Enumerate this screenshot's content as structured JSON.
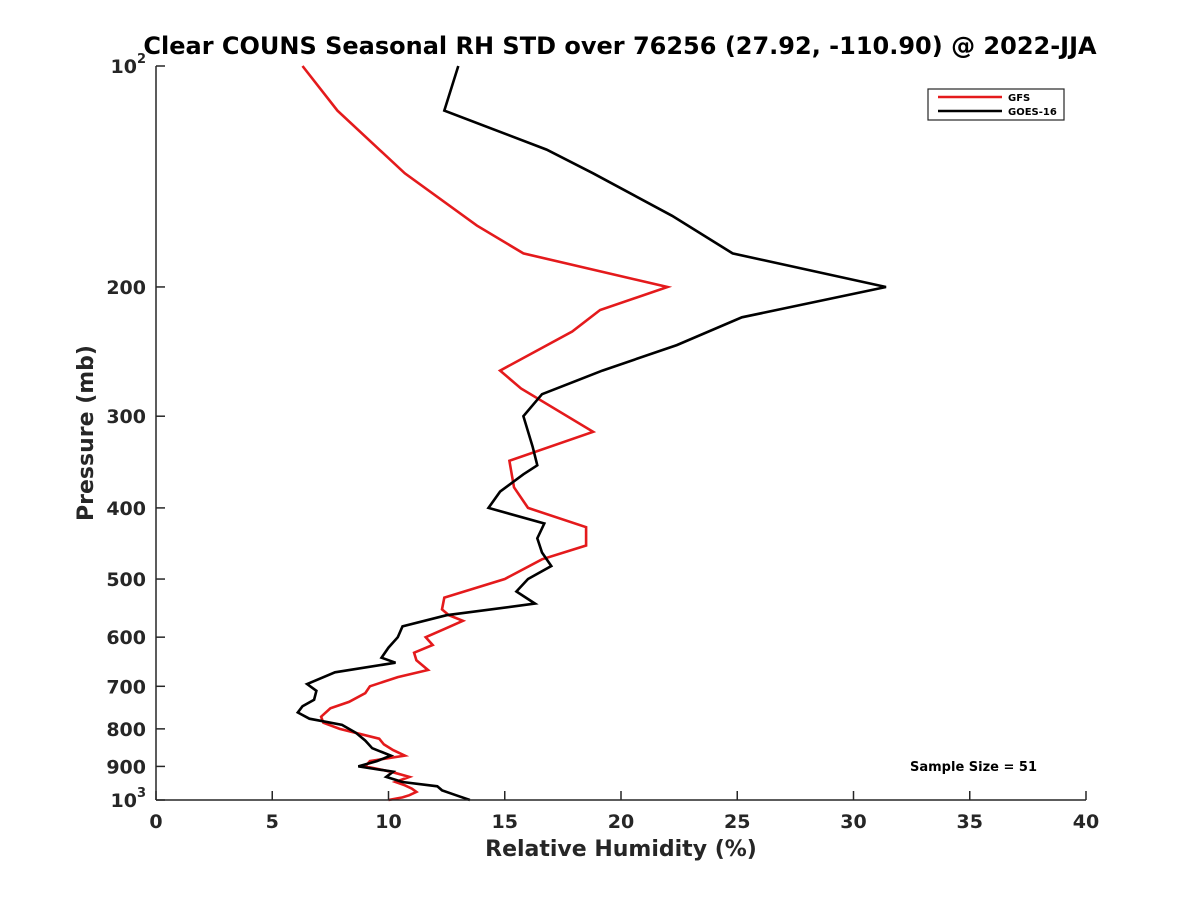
{
  "chart_data": {
    "type": "line",
    "title": "Clear COUNS Seasonal RH STD over 76256 (27.92, -110.90) @ 2022-JJA",
    "xlabel": "Relative Humidity (%)",
    "ylabel": "Pressure (mb)",
    "xlim": [
      0,
      40
    ],
    "ylim": [
      100,
      1000
    ],
    "yscale": "log",
    "y_reversed": true,
    "grid": false,
    "legend_position": "top-right",
    "x_ticks": [
      {
        "value": 0,
        "label": "0"
      },
      {
        "value": 5,
        "label": "5"
      },
      {
        "value": 10,
        "label": "10"
      },
      {
        "value": 15,
        "label": "15"
      },
      {
        "value": 20,
        "label": "20"
      },
      {
        "value": 25,
        "label": "25"
      },
      {
        "value": 30,
        "label": "30"
      },
      {
        "value": 35,
        "label": "35"
      },
      {
        "value": 40,
        "label": "40"
      }
    ],
    "y_ticks": [
      {
        "value": 100,
        "base": "10",
        "exp": "2"
      },
      {
        "value": 200,
        "label": "200"
      },
      {
        "value": 300,
        "label": "300"
      },
      {
        "value": 400,
        "label": "400"
      },
      {
        "value": 500,
        "label": "500"
      },
      {
        "value": 600,
        "label": "600"
      },
      {
        "value": 700,
        "label": "700"
      },
      {
        "value": 800,
        "label": "800"
      },
      {
        "value": 900,
        "label": "900"
      },
      {
        "value": 1000,
        "base": "10",
        "exp": "3"
      }
    ],
    "annotation": "Sample Size = 51",
    "series": [
      {
        "name": "GFS",
        "color": "#e41a1c",
        "x": [
          6.3,
          7.8,
          10.7,
          13.8,
          15.8,
          22.0,
          19.1,
          17.9,
          14.8,
          15.7,
          18.8,
          15.2,
          15.4,
          16.0,
          18.5,
          18.5,
          16.6,
          15.0,
          12.4,
          12.3,
          12.6,
          13.2,
          12.4,
          11.6,
          11.9,
          11.1,
          11.2,
          11.7,
          10.4,
          9.2,
          9.0,
          8.3,
          7.5,
          7.1,
          7.2,
          7.9,
          9.6,
          9.8,
          10.2,
          10.7,
          9.2,
          9.0,
          10.1,
          10.9,
          10.3,
          10.7,
          11.0,
          11.2,
          10.9,
          10.6,
          10.0
        ],
        "y": [
          100,
          115,
          140,
          165,
          180,
          200,
          215,
          230,
          260,
          275,
          315,
          345,
          375,
          400,
          425,
          450,
          470,
          500,
          530,
          550,
          560,
          570,
          585,
          600,
          615,
          630,
          645,
          665,
          680,
          700,
          715,
          735,
          750,
          770,
          785,
          800,
          825,
          840,
          855,
          870,
          885,
          900,
          915,
          930,
          945,
          955,
          965,
          975,
          985,
          992,
          1000
        ]
      },
      {
        "name": "GOES-16",
        "color": "#000000",
        "x": [
          13.0,
          12.4,
          16.8,
          18.8,
          22.2,
          24.8,
          31.4,
          25.2,
          22.4,
          19.2,
          16.6,
          15.8,
          16.2,
          16.4,
          15.8,
          14.8,
          14.3,
          16.7,
          16.4,
          16.6,
          17.0,
          16.0,
          15.5,
          16.3,
          12.5,
          10.6,
          10.4,
          10.0,
          9.7,
          10.3,
          7.7,
          6.5,
          6.9,
          6.8,
          6.3,
          6.1,
          6.6,
          8.0,
          8.6,
          9.0,
          9.3,
          10.1,
          9.5,
          8.7,
          10.2,
          9.9,
          10.6,
          12.1,
          12.3,
          12.9,
          13.5
        ],
        "y": [
          100,
          115,
          130,
          140,
          160,
          180,
          200,
          220,
          240,
          260,
          280,
          300,
          330,
          350,
          360,
          380,
          400,
          420,
          440,
          460,
          480,
          500,
          520,
          540,
          560,
          580,
          600,
          620,
          640,
          650,
          670,
          695,
          710,
          730,
          745,
          760,
          775,
          790,
          810,
          830,
          850,
          870,
          885,
          900,
          915,
          930,
          945,
          958,
          970,
          985,
          1000
        ]
      }
    ]
  }
}
